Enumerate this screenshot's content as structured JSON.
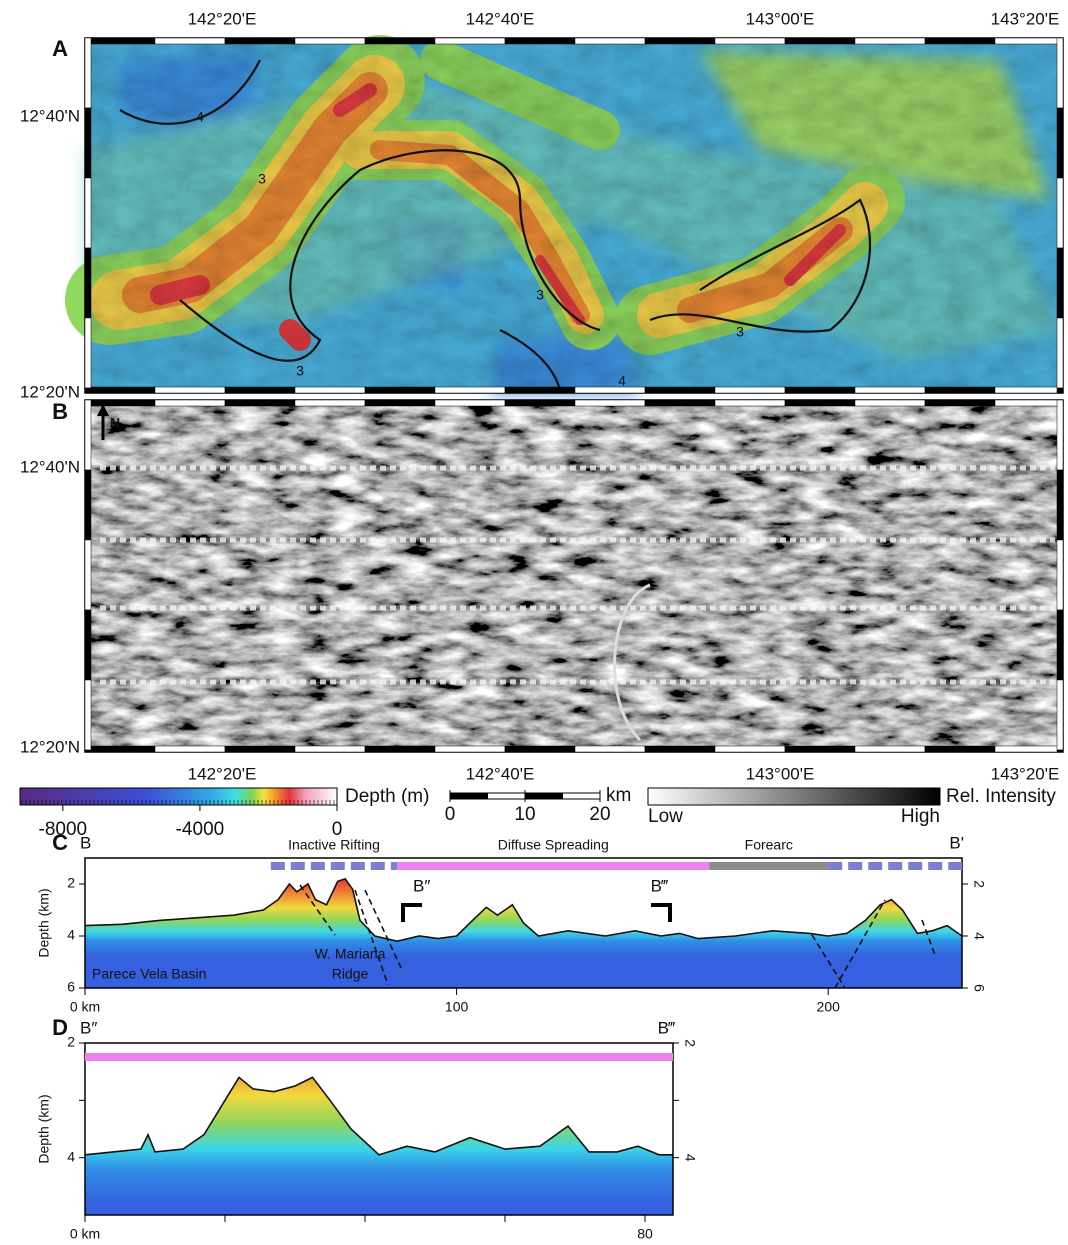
{
  "map_a": {
    "label": "A",
    "lon_ticks": [
      "142°20'E",
      "142°40'E",
      "143°00'E",
      "143°20'E"
    ],
    "lat_ticks": [
      "12°40'N",
      "12°20'N"
    ],
    "contour_labels": [
      "4",
      "3",
      "3",
      "3",
      "3",
      "4"
    ]
  },
  "map_b": {
    "label": "B",
    "north": "N",
    "lat_ticks": [
      "12°40'N",
      "12°20'N"
    ],
    "lon_ticks": [
      "142°20'E",
      "142°40'E",
      "143°00'E",
      "143°20'E"
    ]
  },
  "depth_colorbar": {
    "title": "Depth (m)",
    "range": [
      -9250,
      0
    ],
    "ticks": [
      -8000,
      -4000,
      0
    ]
  },
  "scale_bar": {
    "unit": "km",
    "range": [
      0,
      20
    ],
    "ticks": [
      0,
      10,
      20
    ]
  },
  "intensity_bar": {
    "title": "Rel. Intensity",
    "low": "Low",
    "high": "High"
  },
  "chart_data": [
    {
      "type": "area",
      "label": "C",
      "ylabel": "Depth (km)",
      "start_label": "B",
      "end_label": "B'",
      "x": [
        0,
        10,
        20,
        30,
        40,
        48,
        52,
        55,
        57,
        60,
        62,
        65,
        68,
        70,
        72,
        74,
        78,
        84,
        90,
        95,
        100,
        105,
        108,
        111,
        115,
        118,
        122,
        130,
        140,
        148,
        155,
        160,
        165,
        175,
        185,
        195,
        200,
        205,
        210,
        214,
        217,
        220,
        224,
        228,
        232,
        236
      ],
      "values": [
        3.6,
        3.55,
        3.4,
        3.3,
        3.2,
        3.0,
        2.6,
        2.0,
        2.3,
        2.0,
        2.6,
        2.8,
        1.9,
        1.8,
        2.2,
        3.4,
        4.0,
        4.2,
        4.0,
        4.1,
        4.0,
        3.3,
        2.9,
        3.2,
        2.8,
        3.5,
        4.0,
        3.8,
        4.0,
        3.8,
        4.0,
        3.9,
        4.1,
        4.0,
        3.8,
        3.9,
        4.0,
        3.9,
        3.4,
        2.8,
        2.6,
        3.0,
        3.9,
        3.8,
        3.6,
        4.0
      ],
      "xlim": [
        0,
        236
      ],
      "ylim": [
        1,
        6
      ],
      "xticks": [
        {
          "value": 0,
          "label": "0 km"
        },
        100,
        200
      ],
      "yticks": [
        2,
        4,
        6
      ],
      "segments": [
        {
          "name": "Inactive Rifting",
          "start": 50,
          "end": 84,
          "color": "#7a80cf",
          "dashed": true
        },
        {
          "name": "Diffuse Spreading",
          "start": 84,
          "end": 168,
          "color": "#ee82ee",
          "dashed": false
        },
        {
          "name": "Forearc",
          "start": 168,
          "end": 200,
          "color": "#8c8c8c",
          "dashed": false
        },
        {
          "start": 200,
          "end": 236,
          "color": "#7a80cf",
          "dashed": true
        }
      ],
      "annotations": [
        "B″",
        "B‴",
        "Parece Vela Basin",
        "W. Mariana",
        "Ridge"
      ]
    },
    {
      "type": "area",
      "label": "D",
      "ylabel": "Depth (km)",
      "start_label": "B″",
      "end_label": "B‴",
      "x": [
        0,
        4,
        8,
        9,
        10,
        14,
        17,
        20,
        22,
        24,
        27,
        30,
        32.5,
        35,
        38,
        42,
        46,
        50,
        55,
        60,
        65,
        69,
        72,
        76,
        79,
        82,
        84
      ],
      "values": [
        3.95,
        3.9,
        3.85,
        3.6,
        3.9,
        3.85,
        3.6,
        3.0,
        2.6,
        2.8,
        2.85,
        2.75,
        2.6,
        3.0,
        3.5,
        3.95,
        3.8,
        3.9,
        3.65,
        3.85,
        3.8,
        3.45,
        3.9,
        3.9,
        3.8,
        3.95,
        3.95
      ],
      "xlim": [
        0,
        84
      ],
      "ylim": [
        2,
        5
      ],
      "xticks": [
        {
          "value": 0,
          "label": "0 km"
        },
        80
      ],
      "minor_xticks": [
        20,
        40,
        60
      ],
      "yticks": [
        2,
        4
      ],
      "minor_yticks": [
        3
      ],
      "segments": [
        {
          "start": 0,
          "end": 84,
          "color": "#ee82ee",
          "dashed": false
        }
      ]
    }
  ]
}
